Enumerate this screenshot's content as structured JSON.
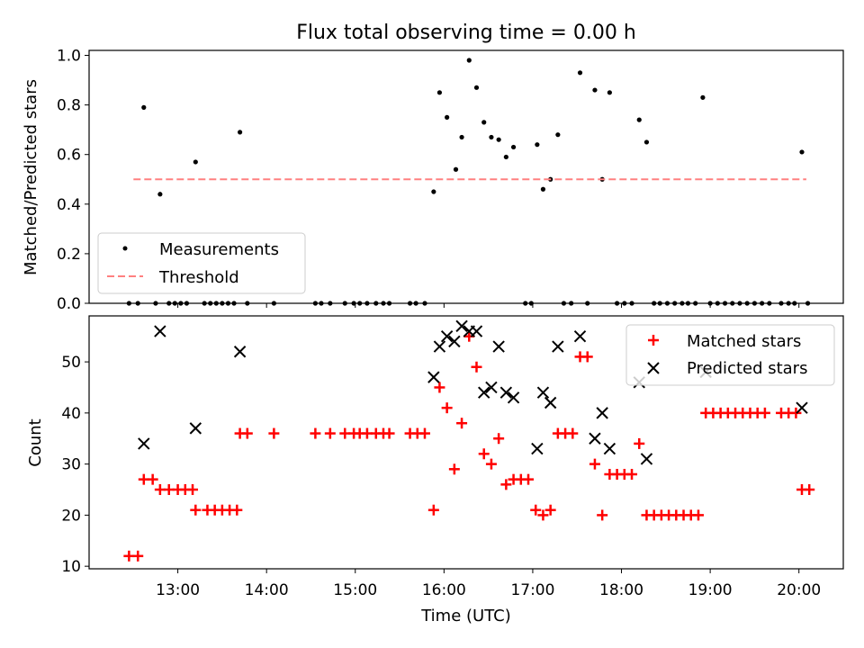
{
  "title": "Flux total observing time = 0.00 h",
  "chart_data": [
    {
      "type": "scatter",
      "ylabel": "Matched/Predicted stars",
      "ylim": [
        0,
        1.02
      ],
      "xlim": [
        "12:00",
        "20:30"
      ],
      "yticks": [
        0.0,
        0.2,
        0.4,
        0.6,
        0.8,
        1.0
      ],
      "ytick_labels": [
        "0.0",
        "0.2",
        "0.4",
        "0.6",
        "0.8",
        "1.0"
      ],
      "legend": {
        "position": "lower-left"
      },
      "series": [
        {
          "name": "Measurements",
          "color": "#000000",
          "marker": "dot",
          "points": [
            [
              "12:27",
              0
            ],
            [
              "12:33",
              0
            ],
            [
              "12:37",
              0.79
            ],
            [
              "12:45",
              0
            ],
            [
              "12:48",
              0.44
            ],
            [
              "12:54",
              0
            ],
            [
              "12:58",
              0
            ],
            [
              "13:02",
              0
            ],
            [
              "13:06",
              0
            ],
            [
              "13:12",
              0.57
            ],
            [
              "13:18",
              0
            ],
            [
              "13:22",
              0
            ],
            [
              "13:26",
              0
            ],
            [
              "13:30",
              0
            ],
            [
              "13:34",
              0
            ],
            [
              "13:38",
              0
            ],
            [
              "13:42",
              0.69
            ],
            [
              "13:47",
              0
            ],
            [
              "14:05",
              0
            ],
            [
              "14:33",
              0
            ],
            [
              "14:37",
              0
            ],
            [
              "14:43",
              0
            ],
            [
              "14:53",
              0
            ],
            [
              "14:59",
              0
            ],
            [
              "15:03",
              0
            ],
            [
              "15:08",
              0
            ],
            [
              "15:14",
              0
            ],
            [
              "15:19",
              0
            ],
            [
              "15:23",
              0
            ],
            [
              "15:37",
              0
            ],
            [
              "15:41",
              0
            ],
            [
              "15:47",
              0
            ],
            [
              "15:53",
              0.45
            ],
            [
              "15:57",
              0.85
            ],
            [
              "16:02",
              0.75
            ],
            [
              "16:08",
              0.54
            ],
            [
              "16:12",
              0.67
            ],
            [
              "16:17",
              0.98
            ],
            [
              "16:22",
              0.87
            ],
            [
              "16:27",
              0.73
            ],
            [
              "16:32",
              0.67
            ],
            [
              "16:37",
              0.66
            ],
            [
              "16:42",
              0.59
            ],
            [
              "16:47",
              0.63
            ],
            [
              "16:55",
              0
            ],
            [
              "16:59",
              0
            ],
            [
              "17:03",
              0.64
            ],
            [
              "17:07",
              0.46
            ],
            [
              "17:12",
              0.5
            ],
            [
              "17:17",
              0.68
            ],
            [
              "17:21",
              0
            ],
            [
              "17:26",
              0
            ],
            [
              "17:32",
              0.93
            ],
            [
              "17:37",
              0
            ],
            [
              "17:42",
              0.86
            ],
            [
              "17:47",
              0.5
            ],
            [
              "17:52",
              0.85
            ],
            [
              "17:57",
              0
            ],
            [
              "18:02",
              0
            ],
            [
              "18:07",
              0
            ],
            [
              "18:12",
              0.74
            ],
            [
              "18:17",
              0.65
            ],
            [
              "18:22",
              0
            ],
            [
              "18:26",
              0
            ],
            [
              "18:31",
              0
            ],
            [
              "18:36",
              0
            ],
            [
              "18:41",
              0
            ],
            [
              "18:45",
              0
            ],
            [
              "18:50",
              0
            ],
            [
              "18:55",
              0.83
            ],
            [
              "19:00",
              0
            ],
            [
              "19:05",
              0
            ],
            [
              "19:10",
              0
            ],
            [
              "19:15",
              0
            ],
            [
              "19:20",
              0
            ],
            [
              "19:25",
              0
            ],
            [
              "19:30",
              0
            ],
            [
              "19:35",
              0
            ],
            [
              "19:40",
              0
            ],
            [
              "19:48",
              0
            ],
            [
              "19:53",
              0
            ],
            [
              "19:57",
              0
            ],
            [
              "20:02",
              0.61
            ],
            [
              "20:06",
              0
            ]
          ]
        },
        {
          "name": "Threshold",
          "color": "#ff8080",
          "style": "dashed",
          "points": [
            [
              "12:30",
              0.5
            ],
            [
              "20:05",
              0.5
            ]
          ]
        }
      ]
    },
    {
      "type": "scatter",
      "xlabel": "Time (UTC)",
      "ylabel": "Count",
      "ylim": [
        9.5,
        59
      ],
      "xlim": [
        "12:00",
        "20:30"
      ],
      "yticks": [
        10,
        20,
        30,
        40,
        50
      ],
      "ytick_labels": [
        "10",
        "20",
        "30",
        "40",
        "50"
      ],
      "xticks": [
        "13:00",
        "14:00",
        "15:00",
        "16:00",
        "17:00",
        "18:00",
        "19:00",
        "20:00"
      ],
      "xtick_labels": [
        "13:00",
        "14:00",
        "15:00",
        "16:00",
        "17:00",
        "18:00",
        "19:00",
        "20:00"
      ],
      "legend": {
        "position": "upper-right"
      },
      "series": [
        {
          "name": "Matched stars",
          "color": "#ff0000",
          "marker": "plus",
          "points": [
            [
              "12:27",
              12
            ],
            [
              "12:33",
              12
            ],
            [
              "12:37",
              27
            ],
            [
              "12:43",
              27
            ],
            [
              "12:48",
              25
            ],
            [
              "12:54",
              25
            ],
            [
              "13:00",
              25
            ],
            [
              "13:05",
              25
            ],
            [
              "13:10",
              25
            ],
            [
              "13:12",
              21
            ],
            [
              "13:20",
              21
            ],
            [
              "13:25",
              21
            ],
            [
              "13:30",
              21
            ],
            [
              "13:35",
              21
            ],
            [
              "13:40",
              21
            ],
            [
              "13:42",
              36
            ],
            [
              "13:47",
              36
            ],
            [
              "14:05",
              36
            ],
            [
              "14:33",
              36
            ],
            [
              "14:43",
              36
            ],
            [
              "14:53",
              36
            ],
            [
              "14:59",
              36
            ],
            [
              "15:03",
              36
            ],
            [
              "15:08",
              36
            ],
            [
              "15:14",
              36
            ],
            [
              "15:19",
              36
            ],
            [
              "15:23",
              36
            ],
            [
              "15:37",
              36
            ],
            [
              "15:42",
              36
            ],
            [
              "15:47",
              36
            ],
            [
              "15:53",
              21
            ],
            [
              "15:57",
              45
            ],
            [
              "16:02",
              41
            ],
            [
              "16:07",
              29
            ],
            [
              "16:12",
              38
            ],
            [
              "16:17",
              55
            ],
            [
              "16:22",
              49
            ],
            [
              "16:27",
              32
            ],
            [
              "16:32",
              30
            ],
            [
              "16:37",
              35
            ],
            [
              "16:42",
              26
            ],
            [
              "16:47",
              27
            ],
            [
              "16:52",
              27
            ],
            [
              "16:57",
              27
            ],
            [
              "17:02",
              21
            ],
            [
              "17:07",
              20
            ],
            [
              "17:12",
              21
            ],
            [
              "17:17",
              36
            ],
            [
              "17:22",
              36
            ],
            [
              "17:27",
              36
            ],
            [
              "17:32",
              51
            ],
            [
              "17:37",
              51
            ],
            [
              "17:42",
              30
            ],
            [
              "17:47",
              20
            ],
            [
              "17:52",
              28
            ],
            [
              "17:57",
              28
            ],
            [
              "18:02",
              28
            ],
            [
              "18:07",
              28
            ],
            [
              "18:12",
              34
            ],
            [
              "18:17",
              20
            ],
            [
              "18:22",
              20
            ],
            [
              "18:27",
              20
            ],
            [
              "18:32",
              20
            ],
            [
              "18:37",
              20
            ],
            [
              "18:42",
              20
            ],
            [
              "18:47",
              20
            ],
            [
              "18:52",
              20
            ],
            [
              "18:57",
              40
            ],
            [
              "19:02",
              40
            ],
            [
              "19:07",
              40
            ],
            [
              "19:12",
              40
            ],
            [
              "19:17",
              40
            ],
            [
              "19:22",
              40
            ],
            [
              "19:27",
              40
            ],
            [
              "19:32",
              40
            ],
            [
              "19:37",
              40
            ],
            [
              "19:48",
              40
            ],
            [
              "19:53",
              40
            ],
            [
              "19:58",
              40
            ],
            [
              "20:02",
              25
            ],
            [
              "20:07",
              25
            ]
          ]
        },
        {
          "name": "Predicted stars",
          "color": "#000000",
          "marker": "x",
          "points": [
            [
              "12:37",
              34
            ],
            [
              "12:48",
              56
            ],
            [
              "13:12",
              37
            ],
            [
              "13:42",
              52
            ],
            [
              "15:53",
              47
            ],
            [
              "15:57",
              53
            ],
            [
              "16:02",
              55
            ],
            [
              "16:07",
              54
            ],
            [
              "16:12",
              57
            ],
            [
              "16:17",
              56
            ],
            [
              "16:22",
              56
            ],
            [
              "16:27",
              44
            ],
            [
              "16:32",
              45
            ],
            [
              "16:37",
              53
            ],
            [
              "16:42",
              44
            ],
            [
              "16:47",
              43
            ],
            [
              "17:03",
              33
            ],
            [
              "17:07",
              44
            ],
            [
              "17:12",
              42
            ],
            [
              "17:17",
              53
            ],
            [
              "17:32",
              55
            ],
            [
              "17:42",
              35
            ],
            [
              "17:47",
              40
            ],
            [
              "17:52",
              33
            ],
            [
              "18:12",
              46
            ],
            [
              "18:17",
              31
            ],
            [
              "18:57",
              48
            ],
            [
              "20:02",
              41
            ]
          ]
        }
      ]
    }
  ]
}
